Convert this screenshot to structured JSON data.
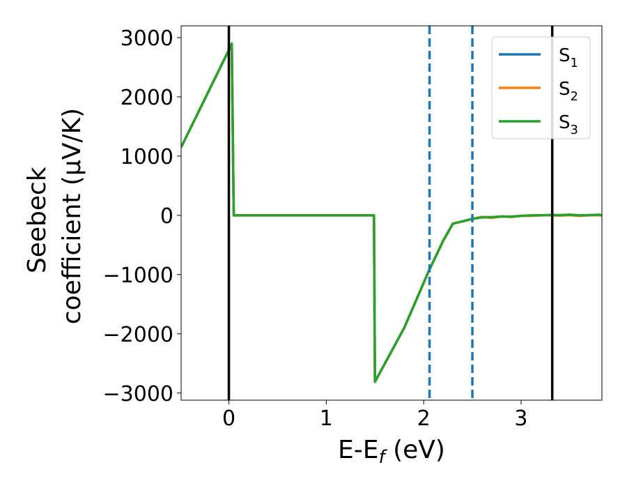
{
  "chart_data": {
    "type": "line",
    "xlabel": "E-E",
    "xlabel_sub": "f",
    "xlabel_unit": " (eV)",
    "ylabel_line1": "Seebeck",
    "ylabel_line2": "coefficient  (μV/K)",
    "xlim": [
      -0.49,
      3.83
    ],
    "ylim": [
      -3120,
      3200
    ],
    "xticks": [
      0,
      1,
      2,
      3
    ],
    "xtick_labels": [
      "0",
      "1",
      "2",
      "3"
    ],
    "yticks": [
      3000,
      2000,
      1000,
      0,
      -1000,
      -2000,
      -3000
    ],
    "ytick_labels": [
      "3000",
      "2000",
      "1000",
      "0",
      "−1000",
      "−2000",
      "−3000"
    ],
    "grid": false,
    "legend_position": "upper right",
    "series": [
      {
        "name": "S",
        "sub": "1",
        "color": "#1f77b4",
        "x": [
          -0.49,
          0.0,
          0.02,
          0.03,
          0.05,
          1.0,
          1.49,
          1.5,
          1.8,
          2.05,
          2.2,
          2.3,
          2.4,
          2.5,
          2.6,
          2.7,
          2.8,
          2.9,
          3.0,
          3.1,
          3.2,
          3.3,
          3.4,
          3.5,
          3.6,
          3.7,
          3.8,
          3.83
        ],
        "y": [
          1150,
          2790,
          2840,
          2900,
          0,
          0,
          0,
          -2810,
          -1900,
          -950,
          -430,
          -140,
          -100,
          -60,
          -30,
          -35,
          -20,
          -25,
          -10,
          -5,
          0,
          5,
          0,
          10,
          -5,
          0,
          5,
          0
        ]
      },
      {
        "name": "S",
        "sub": "2",
        "color": "#ff7f0e",
        "x": [
          -0.49,
          0.0,
          0.02,
          0.03,
          0.05,
          1.0,
          1.49,
          1.5,
          1.8,
          2.05,
          2.2,
          2.3,
          2.4,
          2.5,
          2.6,
          2.7,
          2.8,
          2.9,
          3.0,
          3.1,
          3.2,
          3.3,
          3.4,
          3.5,
          3.6,
          3.7,
          3.8,
          3.83
        ],
        "y": [
          1150,
          2790,
          2840,
          2900,
          0,
          0,
          0,
          -2810,
          -1900,
          -950,
          -430,
          -140,
          -100,
          -60,
          -25,
          -45,
          -15,
          -30,
          -5,
          -10,
          5,
          0,
          -5,
          5,
          -10,
          5,
          0,
          0
        ]
      },
      {
        "name": "S",
        "sub": "3",
        "color": "#2ca02c",
        "x": [
          -0.49,
          0.0,
          0.02,
          0.03,
          0.05,
          1.0,
          1.49,
          1.5,
          1.8,
          2.05,
          2.2,
          2.3,
          2.4,
          2.5,
          2.6,
          2.7,
          2.8,
          2.9,
          3.0,
          3.1,
          3.2,
          3.3,
          3.4,
          3.5,
          3.6,
          3.7,
          3.8,
          3.83
        ],
        "y": [
          1150,
          2790,
          2840,
          2900,
          0,
          0,
          0,
          -2810,
          -1900,
          -950,
          -430,
          -140,
          -100,
          -60,
          -35,
          -30,
          -20,
          -20,
          -10,
          0,
          0,
          5,
          5,
          10,
          0,
          5,
          10,
          0
        ]
      }
    ],
    "vlines": [
      {
        "x": 0.0,
        "style": "solid",
        "color": "#000000"
      },
      {
        "x": 3.32,
        "style": "solid",
        "color": "#000000"
      },
      {
        "x": 2.06,
        "style": "dashed",
        "color": "#1f77b4"
      },
      {
        "x": 2.5,
        "style": "dashed",
        "color": "#1f77b4"
      }
    ]
  }
}
